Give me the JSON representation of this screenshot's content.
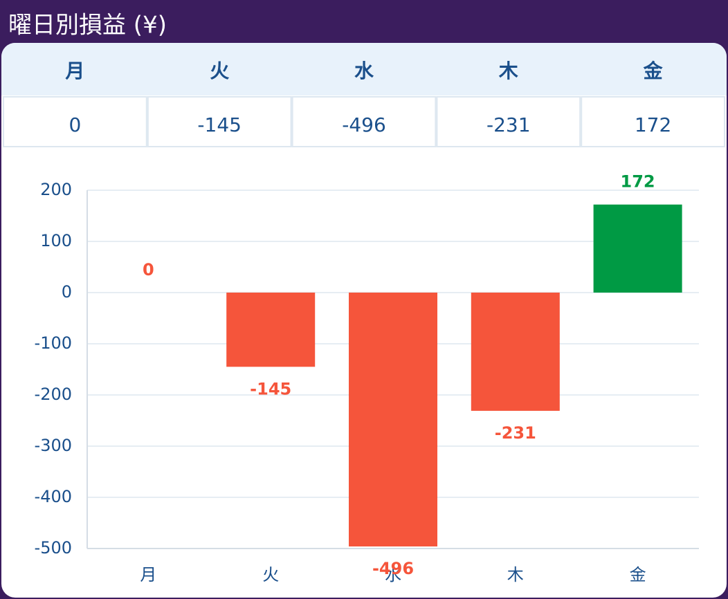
{
  "title": "曜日別損益 (¥)",
  "chart_data": {
    "type": "bar",
    "categories": [
      "月",
      "火",
      "水",
      "木",
      "金"
    ],
    "values": [
      0,
      -145,
      -496,
      -231,
      172
    ],
    "colors": {
      "positive": "#009a44",
      "negative": "#f5553b"
    },
    "ylim": [
      -500,
      200
    ],
    "yticks": [
      -500,
      -400,
      -300,
      -200,
      -100,
      0,
      100,
      200
    ],
    "grid": true
  }
}
